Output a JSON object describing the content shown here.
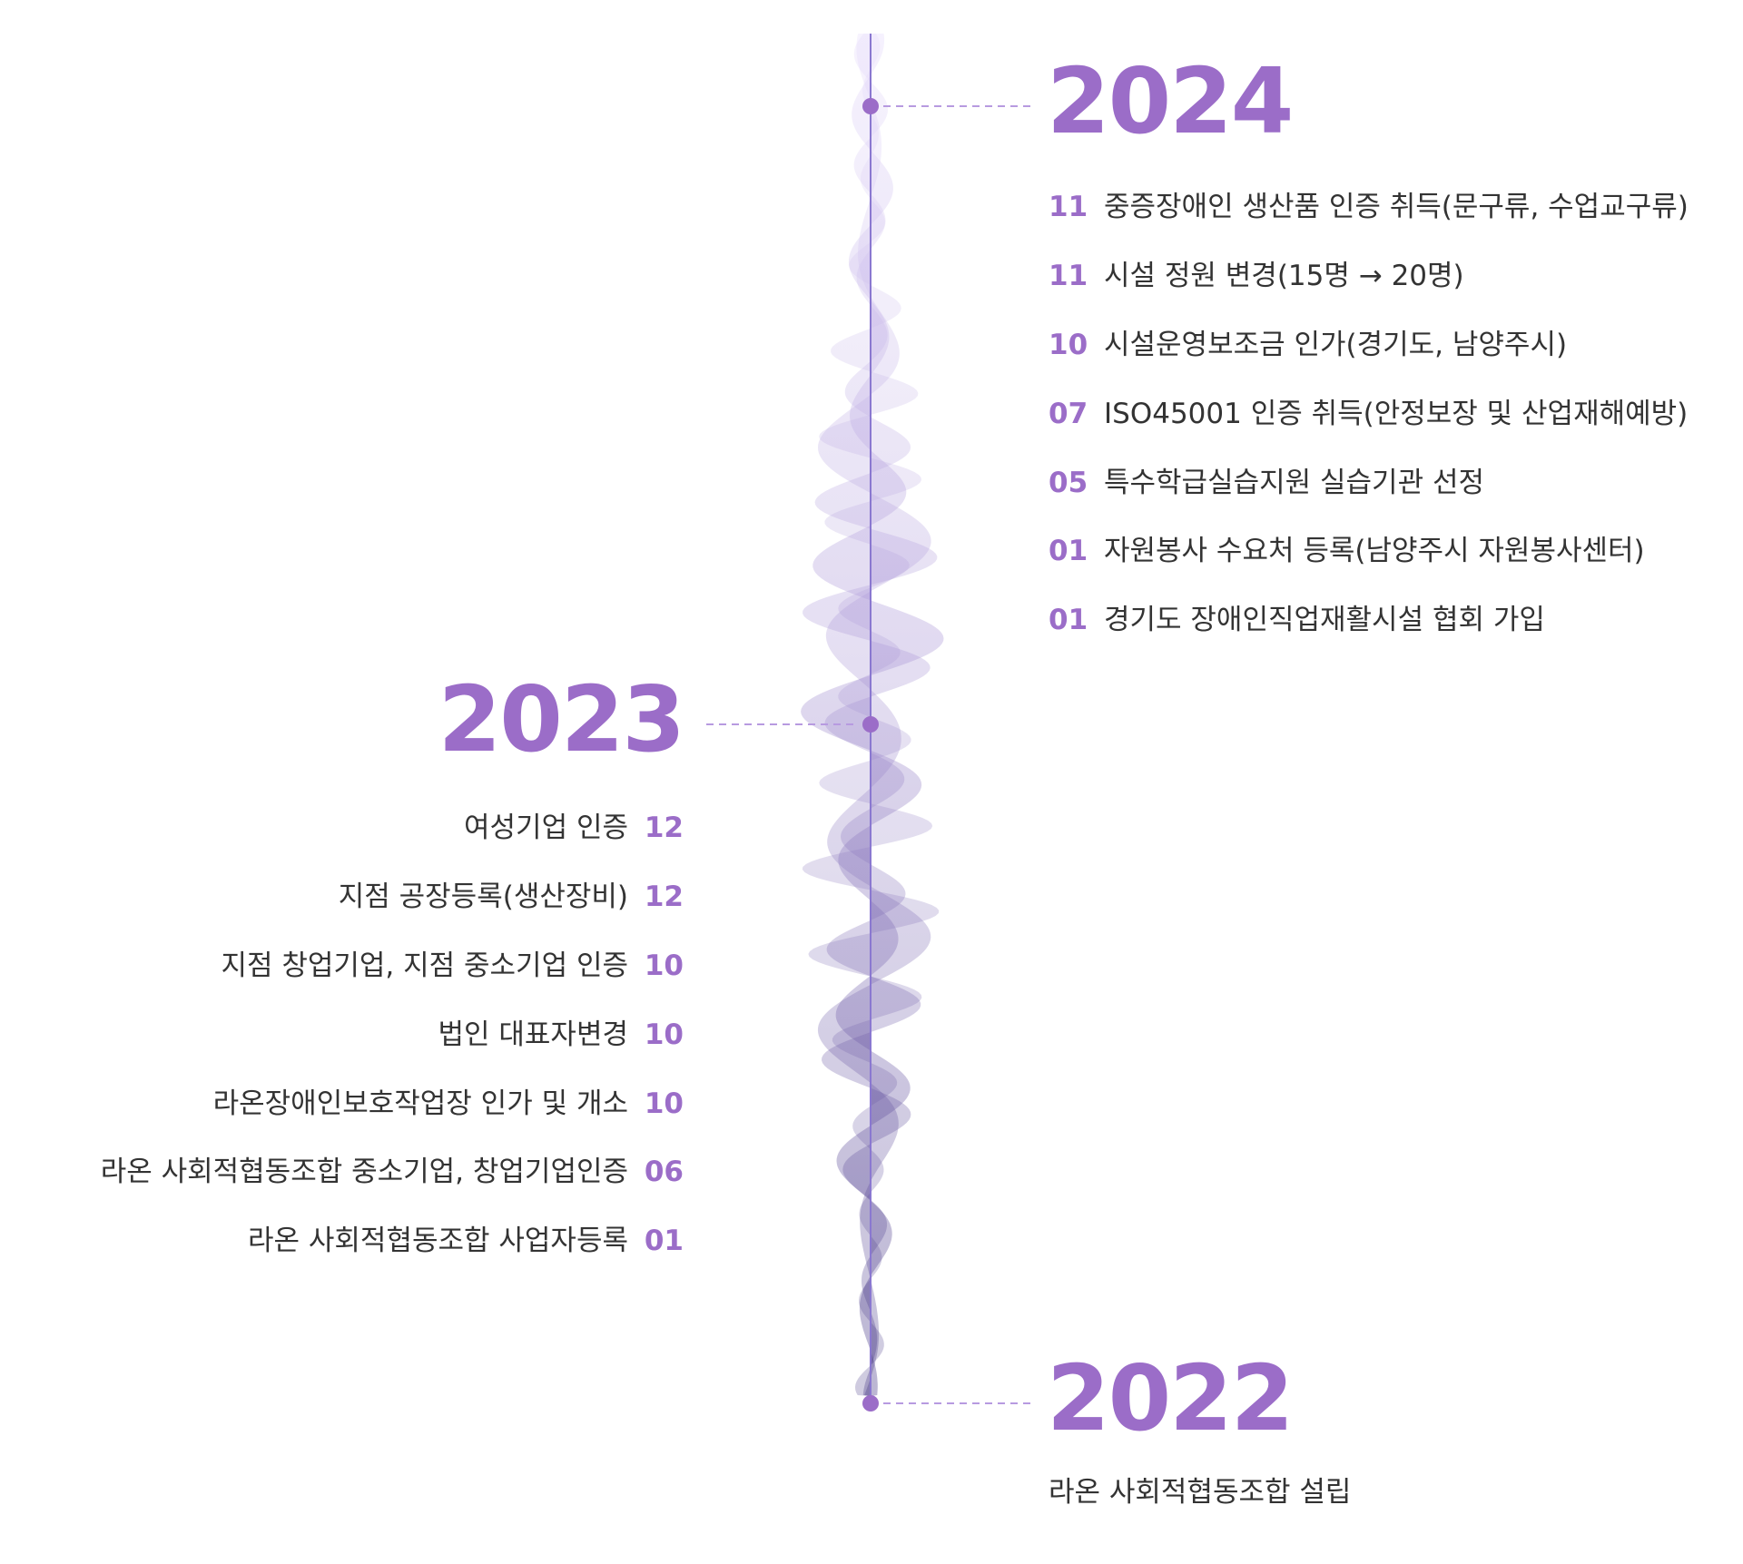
{
  "timeline": [
    {
      "year": "2024",
      "items": [
        {
          "month": "11",
          "text": "중증장애인 생산품 인증 취득(문구류, 수업교구류)"
        },
        {
          "month": "11",
          "text": "시설 정원 변경(15명 → 20명)"
        },
        {
          "month": "10",
          "text": "시설운영보조금 인가(경기도, 남양주시)"
        },
        {
          "month": "07",
          "text": "ISO45001 인증 취득(안정보장 및 산업재해예방)"
        },
        {
          "month": "05",
          "text": "특수학급실습지원 실습기관 선정"
        },
        {
          "month": "01",
          "text": "자원봉사 수요처 등록(남양주시 자원봉사센터)"
        },
        {
          "month": "01",
          "text": "경기도 장애인직업재활시설 협회 가입"
        }
      ]
    },
    {
      "year": "2023",
      "items": [
        {
          "month": "12",
          "text": "여성기업 인증"
        },
        {
          "month": "12",
          "text": "지점 공장등록(생산장비)"
        },
        {
          "month": "10",
          "text": "지점 창업기업, 지점 중소기업 인증"
        },
        {
          "month": "10",
          "text": "법인 대표자변경"
        },
        {
          "month": "10",
          "text": "라온장애인보호작업장 인가 및 개소"
        },
        {
          "month": "06",
          "text": "라온 사회적협동조합 중소기업, 창업기업인증"
        },
        {
          "month": "01",
          "text": "라온 사회적협동조합 사업자등록"
        }
      ]
    },
    {
      "year": "2022",
      "items": [
        {
          "text": "라온 사회적협동조합 설립"
        }
      ]
    }
  ]
}
